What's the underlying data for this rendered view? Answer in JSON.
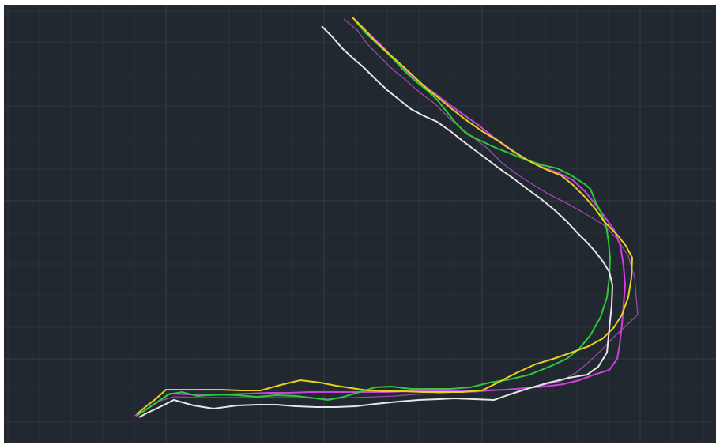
{
  "canvas": {
    "background": "#212830",
    "grid_minor_color": "#2a323b",
    "grid_major_color": "#323d49",
    "grid_visible": true
  },
  "polylines": [
    {
      "id": "white-curve",
      "color": "#e6e6e6"
    },
    {
      "id": "magenta-curve",
      "color": "#d040e0"
    },
    {
      "id": "purple-curve",
      "color": "#9a4aa8"
    },
    {
      "id": "green-curve",
      "color": "#2fc83a"
    },
    {
      "id": "yellow-curve",
      "color": "#e6d21a"
    }
  ]
}
